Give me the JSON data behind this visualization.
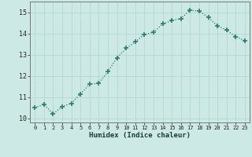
{
  "x": [
    0,
    1,
    2,
    3,
    4,
    5,
    6,
    7,
    8,
    9,
    10,
    11,
    12,
    13,
    14,
    15,
    16,
    17,
    18,
    19,
    20,
    21,
    22,
    23
  ],
  "y": [
    10.5,
    10.65,
    10.2,
    10.55,
    10.7,
    11.15,
    11.6,
    11.65,
    12.2,
    12.85,
    13.3,
    13.6,
    13.95,
    14.05,
    14.45,
    14.6,
    14.7,
    15.1,
    15.05,
    14.75,
    14.35,
    14.15,
    13.85,
    13.65
  ],
  "line_color": "#2e7d6e",
  "marker": "+",
  "bg_color": "#cce9e5",
  "grid_color": "#afd4cf",
  "xlabel": "Humidex (Indice chaleur)",
  "xlim": [
    -0.5,
    23.5
  ],
  "ylim": [
    9.8,
    15.5
  ],
  "yticks": [
    10,
    11,
    12,
    13,
    14,
    15
  ],
  "xticks": [
    0,
    1,
    2,
    3,
    4,
    5,
    6,
    7,
    8,
    9,
    10,
    11,
    12,
    13,
    14,
    15,
    16,
    17,
    18,
    19,
    20,
    21,
    22,
    23
  ]
}
